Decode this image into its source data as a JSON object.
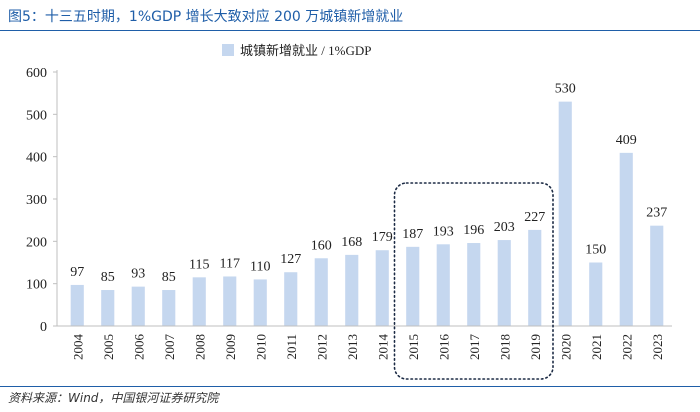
{
  "page": {
    "title": "图5：十三五时期，1%GDP 增长大致对应 200 万城镇新增就业",
    "source": "资料来源：Wind，中国银河证券研究院"
  },
  "colors": {
    "bar": "#c5d7ef",
    "title": "#1f5ea8",
    "axis": "#bfbfbf",
    "text": "#222222",
    "highlight_border": "#1b2a44"
  },
  "chart_data": {
    "type": "bar",
    "title": "",
    "xlabel": "",
    "ylabel": "",
    "categories": [
      "2004",
      "2005",
      "2006",
      "2007",
      "2008",
      "2009",
      "2010",
      "2011",
      "2012",
      "2013",
      "2014",
      "2015",
      "2016",
      "2017",
      "2018",
      "2019",
      "2020",
      "2021",
      "2022",
      "2023"
    ],
    "series": [
      {
        "name": "城镇新增就业 / 1%GDP",
        "values": [
          97,
          85,
          93,
          85,
          115,
          117,
          110,
          127,
          160,
          168,
          179,
          187,
          193,
          196,
          203,
          227,
          530,
          150,
          409,
          237
        ]
      }
    ],
    "data_labels": [
      "97",
      "85",
      "93",
      "85",
      "115",
      "117",
      "110",
      "127",
      "160",
      "168",
      "179",
      "187",
      "193",
      "196",
      "203",
      "227",
      "530",
      "150",
      "409",
      "237"
    ],
    "ylim": [
      0,
      600
    ],
    "yticks": [
      0,
      100,
      200,
      300,
      400,
      500,
      600
    ],
    "legend_position": "top-center",
    "grid": false,
    "highlight_range": [
      "2015",
      "2019"
    ]
  }
}
